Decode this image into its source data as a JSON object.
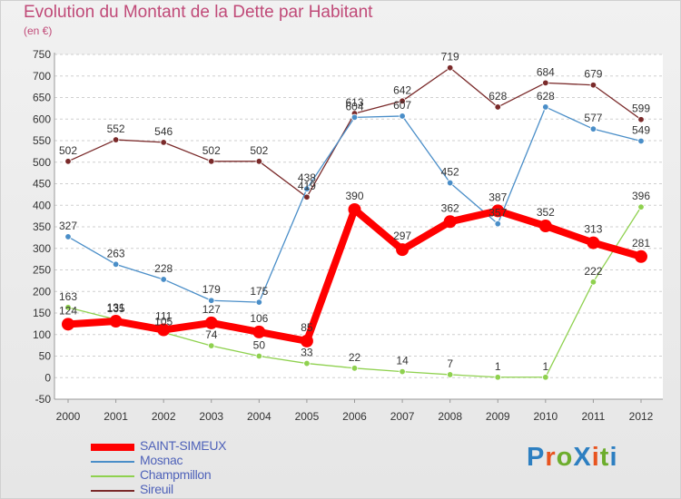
{
  "header": {
    "title": "Evolution du Montant de la Dette par Habitant",
    "subtitle": "(en €)"
  },
  "brand": {
    "text": "ProXiti",
    "colors": [
      "#2d7fc1",
      "#e8541f",
      "#6dad2d",
      "#2d7fc1",
      "#e8541f",
      "#6dad2d",
      "#2d7fc1"
    ]
  },
  "chart_data": {
    "type": "line",
    "title": "Evolution du Montant de la Dette par Habitant",
    "subtitle": "(en €)",
    "xlabel": "",
    "ylabel": "",
    "x": [
      "2000",
      "2001",
      "2002",
      "2003",
      "2004",
      "2005",
      "2006",
      "2007",
      "2008",
      "2009",
      "2010",
      "2011",
      "2012"
    ],
    "ylim": [
      -50,
      750
    ],
    "yticks": [
      -50,
      0,
      50,
      100,
      150,
      200,
      250,
      300,
      350,
      400,
      450,
      500,
      550,
      600,
      650,
      700,
      750
    ],
    "grid": "horizontal dashed",
    "legend_position": "bottom-left",
    "series": [
      {
        "name": "Sireuil",
        "color": "#7a2a2a",
        "values": [
          502,
          552,
          546,
          502,
          502,
          419,
          613,
          642,
          719,
          628,
          684,
          679,
          599
        ]
      },
      {
        "name": "Mosnac",
        "color": "#4a8ec8",
        "values": [
          327,
          263,
          228,
          179,
          175,
          438,
          604,
          607,
          452,
          357,
          628,
          577,
          549
        ]
      },
      {
        "name": "Champmillon",
        "color": "#8fd14f",
        "values": [
          163,
          135,
          105,
          74,
          50,
          33,
          22,
          14,
          7,
          1,
          1,
          222,
          396
        ]
      },
      {
        "name": "SAINT-SIMEUX",
        "color": "#ff0000",
        "values": [
          124,
          131,
          111,
          127,
          106,
          85,
          390,
          297,
          362,
          387,
          352,
          313,
          281
        ]
      }
    ],
    "data_labels": [
      {
        "series": "Sireuil",
        "labels": [
          "502",
          "552",
          "546",
          "502",
          "502",
          "419",
          "613",
          "642",
          "719",
          "628",
          "684",
          "679",
          "599"
        ]
      },
      {
        "series": "Mosnac",
        "labels": [
          "327",
          "263",
          "228",
          "179",
          "175",
          "438",
          "604",
          "607",
          "452",
          "357",
          "628",
          "577",
          "549"
        ]
      },
      {
        "series": "Champmillon",
        "labels": [
          "163",
          "135",
          "105",
          "74",
          "50",
          "33",
          "22",
          "14",
          "7",
          "1",
          "1",
          "222",
          "396"
        ]
      },
      {
        "series": "SAINT-SIMEUX",
        "labels": [
          "124",
          "131",
          "111",
          "127",
          "106",
          "85",
          "390",
          "297",
          "362",
          "387",
          "352",
          "313",
          "281"
        ]
      }
    ],
    "legend": [
      {
        "label": "SAINT-SIMEUX",
        "color": "#ff0000",
        "weight": "thick"
      },
      {
        "label": "Mosnac",
        "color": "#4a8ec8",
        "weight": "thin"
      },
      {
        "label": "Champmillon",
        "color": "#8fd14f",
        "weight": "thin"
      },
      {
        "label": "Sireuil",
        "color": "#7a2a2a",
        "weight": "thin"
      }
    ]
  }
}
